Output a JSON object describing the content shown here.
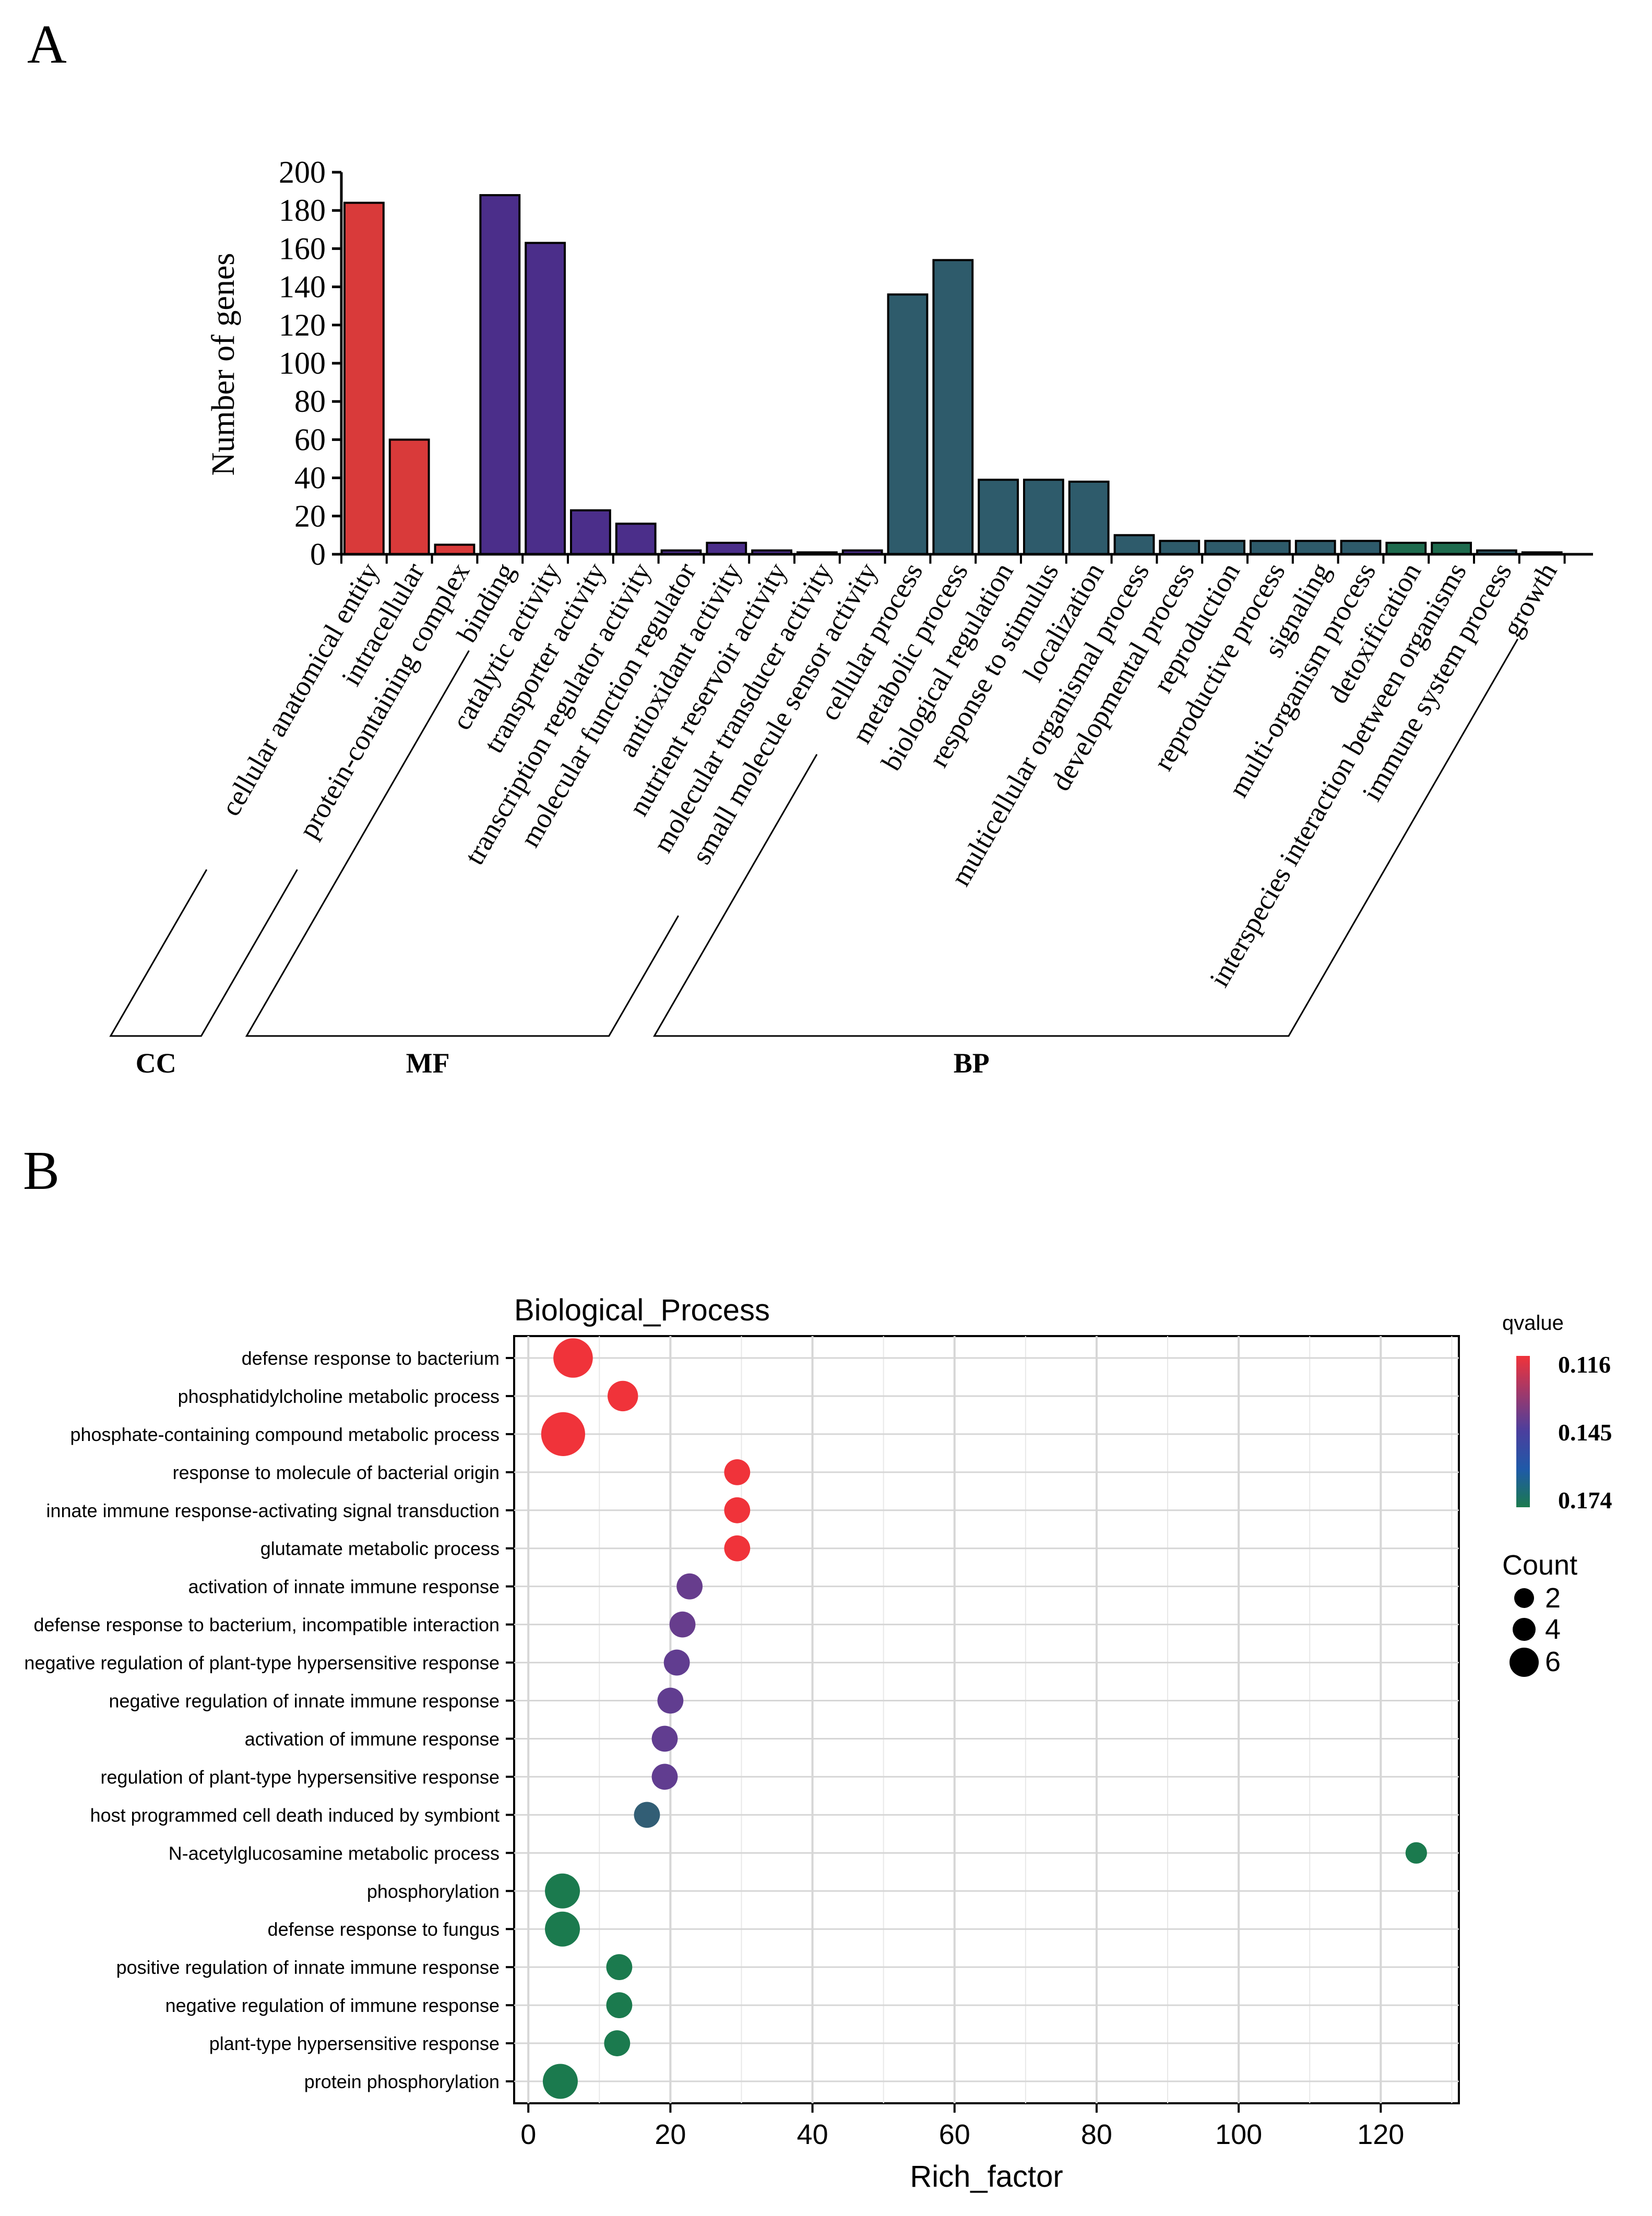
{
  "panels": {
    "a": "A",
    "b": "B"
  },
  "chart_data": [
    {
      "type": "bar",
      "title": "",
      "ylabel": "Number of genes",
      "xlabel": "",
      "ylim": [
        0,
        200
      ],
      "yticks": [
        0,
        20,
        40,
        60,
        80,
        100,
        120,
        140,
        160,
        180,
        200
      ],
      "grid": false,
      "categories": [
        "cellular anatomical entity",
        "intracellular",
        "protein-containing complex",
        "binding",
        "catalytic activity",
        "transporter activity",
        "transcription regulator activity",
        "molecular function regulator",
        "antioxidant activity",
        "nutrient reservoir activity",
        "molecular transducer activity",
        "small molecule sensor activity",
        "cellular process",
        "metabolic process",
        "biological regulation",
        "response to stimulus",
        "localization",
        "multicellular organismal process",
        "developmental process",
        "reproduction",
        "reproductive process",
        "signaling",
        "multi-organism process",
        "detoxification",
        "interspecies interaction between organisms",
        "immune system process",
        "growth"
      ],
      "values": [
        184,
        60,
        5,
        188,
        163,
        23,
        16,
        2,
        6,
        2,
        1,
        2,
        136,
        154,
        39,
        39,
        38,
        10,
        7,
        7,
        7,
        7,
        7,
        6,
        6,
        2,
        1
      ],
      "bar_colors": [
        "#d93a3a",
        "#d93a3a",
        "#d93a3a",
        "#4b2e8a",
        "#4b2e8a",
        "#4b2e8a",
        "#4b2e8a",
        "#4b2e8a",
        "#4b2e8a",
        "#4b2e8a",
        "#4b2e8a",
        "#4b2e8a",
        "#2e5b6b",
        "#2e5b6b",
        "#2e5b6b",
        "#2e5b6b",
        "#2e5b6b",
        "#2e5b6b",
        "#2e5b6b",
        "#2e5b6b",
        "#2e5b6b",
        "#2e5b6b",
        "#2e5b6b",
        "#1e6b4e",
        "#1e6b4e",
        "#2e5b6b",
        "#2e5b6b"
      ],
      "groups": [
        {
          "label": "CC",
          "start": 0,
          "end": 2
        },
        {
          "label": "MF",
          "start": 3,
          "end": 11
        },
        {
          "label": "BP",
          "start": 12,
          "end": 26
        }
      ]
    },
    {
      "type": "scatter",
      "title": "Biological_Process",
      "xlabel": "Rich_factor",
      "ylabel": "",
      "xlim": [
        -2,
        131
      ],
      "xticks": [
        0,
        20,
        40,
        60,
        80,
        100,
        120
      ],
      "grid": true,
      "categories": [
        "defense response to bacterium",
        "phosphatidylcholine metabolic process",
        "phosphate-containing compound metabolic process",
        "response to molecule of bacterial origin",
        "innate immune response-activating signal transduction",
        "glutamate metabolic process",
        "activation of innate immune response",
        "defense response to bacterium, incompatible interaction",
        "negative regulation of plant-type hypersensitive response",
        "negative regulation of innate immune response",
        "activation of immune response",
        "regulation of plant-type hypersensitive response",
        "host programmed cell death induced by symbiont",
        "N-acetylglucosamine metabolic process",
        "phosphorylation",
        "defense response to fungus",
        "positive regulation of innate immune response",
        "negative regulation of immune response",
        "plant-type hypersensitive response",
        "protein phosphorylation"
      ],
      "points": [
        {
          "x": 6.3,
          "count": 6,
          "qvalue": 0.116
        },
        {
          "x": 13.3,
          "count": 4,
          "qvalue": 0.116
        },
        {
          "x": 4.9,
          "count": 7,
          "qvalue": 0.116
        },
        {
          "x": 29.4,
          "count": 3,
          "qvalue": 0.116
        },
        {
          "x": 29.4,
          "count": 3,
          "qvalue": 0.116
        },
        {
          "x": 29.4,
          "count": 3,
          "qvalue": 0.116
        },
        {
          "x": 22.7,
          "count": 3,
          "qvalue": 0.14
        },
        {
          "x": 21.7,
          "count": 3,
          "qvalue": 0.14
        },
        {
          "x": 20.9,
          "count": 3,
          "qvalue": 0.141
        },
        {
          "x": 20.0,
          "count": 3,
          "qvalue": 0.141
        },
        {
          "x": 19.2,
          "count": 3,
          "qvalue": 0.141
        },
        {
          "x": 19.2,
          "count": 3,
          "qvalue": 0.141
        },
        {
          "x": 16.7,
          "count": 3,
          "qvalue": 0.16
        },
        {
          "x": 125.0,
          "count": 2,
          "qvalue": 0.174
        },
        {
          "x": 4.8,
          "count": 5,
          "qvalue": 0.174
        },
        {
          "x": 4.8,
          "count": 5,
          "qvalue": 0.174
        },
        {
          "x": 12.8,
          "count": 3,
          "qvalue": 0.174
        },
        {
          "x": 12.8,
          "count": 3,
          "qvalue": 0.174
        },
        {
          "x": 12.5,
          "count": 3,
          "qvalue": 0.174
        },
        {
          "x": 4.5,
          "count": 5,
          "qvalue": 0.174
        }
      ],
      "color_legend": {
        "title": "qvalue",
        "ticks": [
          "0.116",
          "0.145",
          "0.174"
        ],
        "colors": [
          "#f0333a",
          "#4a3f9e",
          "#1b7a4e"
        ]
      },
      "size_legend": {
        "title": "Count",
        "values": [
          "2",
          "4",
          "6"
        ]
      }
    }
  ]
}
